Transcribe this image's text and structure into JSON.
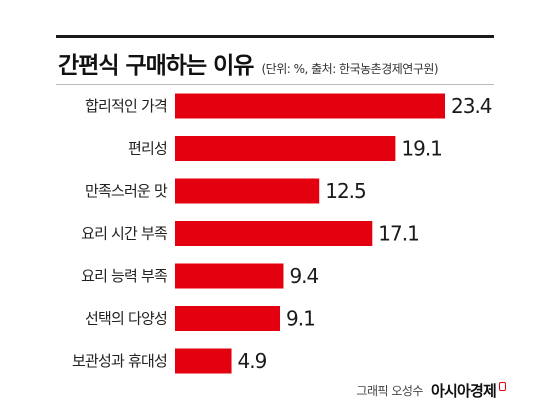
{
  "header": {
    "title": "간편식 구매하는 이유",
    "subtitle": "(단위: %, 출처: 한국농촌경제연구원)"
  },
  "footer": {
    "credit": "그래픽 오성수",
    "brand": "아시아경제"
  },
  "colors": {
    "bar": "#e3000f",
    "text": "#1a1a1a"
  },
  "chart_data": {
    "type": "bar",
    "orientation": "horizontal",
    "categories": [
      "합리적인 가격",
      "편리성",
      "만족스러운 맛",
      "요리 시간 부족",
      "요리 능력 부족",
      "선택의 다양성",
      "보관성과 휴대성"
    ],
    "values": [
      23.4,
      19.1,
      12.5,
      17.1,
      9.4,
      9.1,
      4.9
    ],
    "value_labels": [
      "23.4",
      "19.1",
      "12.5",
      "17.1",
      "9.4",
      "9.1",
      "4.9"
    ],
    "title": "간편식 구매하는 이유",
    "xlabel": "",
    "ylabel": "",
    "xlim": [
      0,
      23.4
    ],
    "grid": false,
    "legend": "none"
  }
}
